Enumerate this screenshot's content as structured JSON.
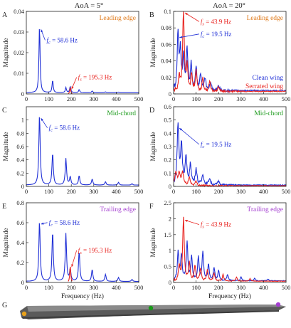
{
  "header": {
    "col_left": "AoA = 5°",
    "col_right": "AoA = 20°"
  },
  "colors": {
    "clean": "#1f2fd6",
    "serrated": "#e8231f",
    "leading": "#e07a1a",
    "mid": "#1a9a1a",
    "trailing": "#a43fd0",
    "axis": "#222222",
    "wing_body": "#5a5a5a"
  },
  "legend": {
    "clean": "Clean wing",
    "serrated": "Serrated wing"
  },
  "xlabel": "Frequency (Hz)",
  "ylabel": "Magnitude",
  "panel_g": {
    "letter": "G"
  },
  "chart_data": [
    {
      "id": "A",
      "type": "line",
      "letter": "A",
      "region": "Leading edge",
      "region_color": "leading",
      "xlim": [
        0,
        500
      ],
      "ylim": [
        0,
        0.04
      ],
      "xticks": [
        0,
        100,
        200,
        300,
        400,
        500
      ],
      "yticks": [
        0,
        0.01,
        0.02,
        0.03,
        0.04
      ],
      "ytick_labels": [
        "0",
        "0.01",
        "0.02",
        "0.03",
        "0.04"
      ],
      "series": [
        {
          "key": "clean",
          "peaks": [
            [
              58.6,
              0.032
            ],
            [
              117,
              0.006
            ],
            [
              176,
              0.0025
            ],
            [
              195.3,
              0.003
            ],
            [
              235,
              0.0015
            ],
            [
              293,
              0.0008
            ],
            [
              352,
              0.0004
            ],
            [
              410,
              0.0003
            ]
          ],
          "floor": 0.0006,
          "w": 3.0
        },
        {
          "key": "serrated",
          "peaks": [
            [
              195.3,
              0.003
            ]
          ],
          "floor": 0.0,
          "w": 2.5,
          "mask": [
            185,
            205
          ]
        }
      ],
      "annotations": [
        {
          "label_sub": "c",
          "value": " = 58.6 Hz",
          "x": 58.6,
          "y": 0.032,
          "tx": 90,
          "ty": 0.025,
          "color": "clean"
        },
        {
          "label_sub": "s",
          "value": " = 195.3 Hz",
          "x": 195.3,
          "y": 0.003,
          "tx": 230,
          "ty": 0.007,
          "color": "serrated"
        }
      ]
    },
    {
      "id": "B",
      "type": "line",
      "letter": "B",
      "region": "Leading edge",
      "region_color": "leading",
      "xlim": [
        0,
        500
      ],
      "ylim": [
        0,
        0.1
      ],
      "xticks": [
        0,
        100,
        200,
        300,
        400,
        500
      ],
      "yticks": [
        0,
        0.02,
        0.04,
        0.06,
        0.08,
        0.1
      ],
      "ytick_labels": [
        "0",
        "0.02",
        "0.04",
        "0.06",
        "0.08",
        "0.1"
      ],
      "series": [
        {
          "key": "clean",
          "peaks": [
            [
              19.5,
              0.07
            ],
            [
              30,
              0.045
            ],
            [
              43.9,
              0.04
            ],
            [
              60,
              0.05
            ],
            [
              78,
              0.03
            ],
            [
              100,
              0.028
            ],
            [
              120,
              0.02
            ],
            [
              140,
              0.015
            ],
            [
              165,
              0.01
            ],
            [
              200,
              0.006
            ]
          ],
          "floor": 0.004,
          "w": 4.0,
          "noise": 0.008
        },
        {
          "key": "serrated",
          "peaks": [
            [
              25,
              0.02
            ],
            [
              43.9,
              0.1
            ],
            [
              60,
              0.03
            ],
            [
              80,
              0.02
            ],
            [
              100,
              0.025
            ],
            [
              130,
              0.015
            ],
            [
              160,
              0.012
            ],
            [
              200,
              0.006
            ]
          ],
          "floor": 0.003,
          "w": 4.0,
          "noise": 0.006
        }
      ],
      "annotations": [
        {
          "label_sub": "s",
          "value": " = 43.9 Hz",
          "x": 43.9,
          "y": 0.1,
          "tx": 120,
          "ty": 0.085,
          "color": "serrated"
        },
        {
          "label_sub": "c",
          "value": " = 19.5 Hz",
          "x": 19.5,
          "y": 0.07,
          "tx": 120,
          "ty": 0.07,
          "color": "clean"
        }
      ],
      "legend": true
    },
    {
      "id": "C",
      "type": "line",
      "letter": "C",
      "region": "Mid-chord",
      "region_color": "mid",
      "xlim": [
        0,
        500
      ],
      "ylim": [
        0,
        1.2
      ],
      "xticks": [
        0,
        100,
        200,
        300,
        400,
        500
      ],
      "yticks": [
        0,
        0.2,
        0.4,
        0.6,
        0.8,
        1.0
      ],
      "ytick_labels": [
        "0",
        "0.2",
        "0.4",
        "0.6",
        "0.8",
        "1"
      ],
      "series": [
        {
          "key": "clean",
          "peaks": [
            [
              58.6,
              1.05
            ],
            [
              117,
              0.48
            ],
            [
              176,
              0.4
            ],
            [
              195.3,
              0.12
            ],
            [
              235,
              0.14
            ],
            [
              293,
              0.09
            ],
            [
              352,
              0.05
            ],
            [
              410,
              0.04
            ],
            [
              470,
              0.02
            ]
          ],
          "floor": 0.02,
          "w": 3.5
        }
      ],
      "annotations": [
        {
          "label_sub": "c",
          "value": " = 58.6 Hz",
          "x": 58.6,
          "y": 1.05,
          "tx": 100,
          "ty": 0.85,
          "color": "clean"
        }
      ]
    },
    {
      "id": "D",
      "type": "line",
      "letter": "D",
      "region": "Mid-chord",
      "region_color": "mid",
      "xlim": [
        0,
        500
      ],
      "ylim": [
        0,
        0.6
      ],
      "xticks": [
        0,
        100,
        200,
        300,
        400,
        500
      ],
      "yticks": [
        0,
        0.1,
        0.2,
        0.3,
        0.4,
        0.5,
        0.6
      ],
      "ytick_labels": [
        "0",
        "0.1",
        "0.2",
        "0.3",
        "0.4",
        "0.5",
        "0.6"
      ],
      "series": [
        {
          "key": "clean",
          "peaks": [
            [
              19.5,
              0.45
            ],
            [
              35,
              0.3
            ],
            [
              55,
              0.2
            ],
            [
              75,
              0.15
            ],
            [
              100,
              0.12
            ],
            [
              130,
              0.08
            ],
            [
              160,
              0.05
            ],
            [
              200,
              0.03
            ]
          ],
          "floor": 0.01,
          "w": 4.5,
          "noise": 0.03
        },
        {
          "key": "serrated",
          "peaks": [
            [
              10,
              0.1
            ],
            [
              25,
              0.09
            ],
            [
              40,
              0.1
            ],
            [
              70,
              0.06
            ],
            [
              100,
              0.03
            ]
          ],
          "floor": 0.005,
          "w": 5.0,
          "noise": 0.02
        }
      ],
      "annotations": [
        {
          "label_sub": "c",
          "value": " = 19.5 Hz",
          "x": 19.5,
          "y": 0.45,
          "tx": 120,
          "ty": 0.3,
          "color": "clean"
        }
      ]
    },
    {
      "id": "E",
      "type": "line",
      "letter": "E",
      "region": "Trailing edge",
      "region_color": "trailing",
      "xlim": [
        0,
        500
      ],
      "ylim": [
        0,
        0.8
      ],
      "xticks": [
        0,
        100,
        200,
        300,
        400,
        500
      ],
      "yticks": [
        0,
        0.2,
        0.4,
        0.6,
        0.8
      ],
      "ytick_labels": [
        "0",
        "0.2",
        "0.4",
        "0.6",
        "0.8"
      ],
      "series": [
        {
          "key": "clean",
          "peaks": [
            [
              58.6,
              0.6
            ],
            [
              117,
              0.5
            ],
            [
              176,
              0.48
            ],
            [
              195.3,
              0.12
            ],
            [
              235,
              0.3
            ],
            [
              293,
              0.12
            ],
            [
              352,
              0.07
            ],
            [
              410,
              0.04
            ],
            [
              470,
              0.02
            ]
          ],
          "floor": 0.01,
          "w": 3.5
        },
        {
          "key": "serrated",
          "peaks": [
            [
              195.3,
              0.17
            ]
          ],
          "floor": 0.0,
          "w": 2.5,
          "mask": [
            185,
            205
          ]
        }
      ],
      "annotations": [
        {
          "label_sub": "c",
          "value": " = 58.6 Hz",
          "x": 58.6,
          "y": 0.6,
          "tx": 100,
          "ty": 0.58,
          "color": "clean"
        },
        {
          "label_sub": "s",
          "value": " = 195.3 Hz",
          "x": 195.3,
          "y": 0.17,
          "tx": 230,
          "ty": 0.3,
          "color": "serrated"
        }
      ]
    },
    {
      "id": "F",
      "type": "line",
      "letter": "F",
      "region": "Trailing edge",
      "region_color": "trailing",
      "xlim": [
        0,
        500
      ],
      "ylim": [
        0,
        2.5
      ],
      "xticks": [
        0,
        100,
        200,
        300,
        400,
        500
      ],
      "yticks": [
        0,
        0.5,
        1.0,
        1.5,
        2.0,
        2.5
      ],
      "ytick_labels": [
        "0",
        "0.5",
        "1",
        "1.5",
        "2",
        "2.5"
      ],
      "series": [
        {
          "key": "clean",
          "peaks": [
            [
              20,
              0.9
            ],
            [
              35,
              0.8
            ],
            [
              60,
              1.2
            ],
            [
              80,
              0.75
            ],
            [
              110,
              0.7
            ],
            [
              130,
              0.9
            ],
            [
              155,
              0.5
            ],
            [
              180,
              0.4
            ],
            [
              200,
              0.3
            ],
            [
              240,
              0.2
            ],
            [
              300,
              0.12
            ],
            [
              360,
              0.08
            ],
            [
              420,
              0.05
            ]
          ],
          "floor": 0.05,
          "w": 4.0,
          "noise": 0.1
        },
        {
          "key": "serrated",
          "peaks": [
            [
              25,
              0.5
            ],
            [
              43.9,
              2.0
            ],
            [
              70,
              0.55
            ],
            [
              95,
              0.5
            ],
            [
              120,
              0.4
            ],
            [
              150,
              0.35
            ],
            [
              180,
              0.25
            ],
            [
              220,
              0.2
            ],
            [
              280,
              0.12
            ],
            [
              340,
              0.08
            ]
          ],
          "floor": 0.04,
          "w": 4.0,
          "noise": 0.08
        }
      ],
      "annotations": [
        {
          "label_sub": "s",
          "value": " = 43.9 Hz",
          "x": 43.9,
          "y": 2.0,
          "tx": 120,
          "ty": 1.75,
          "color": "serrated"
        }
      ]
    }
  ]
}
